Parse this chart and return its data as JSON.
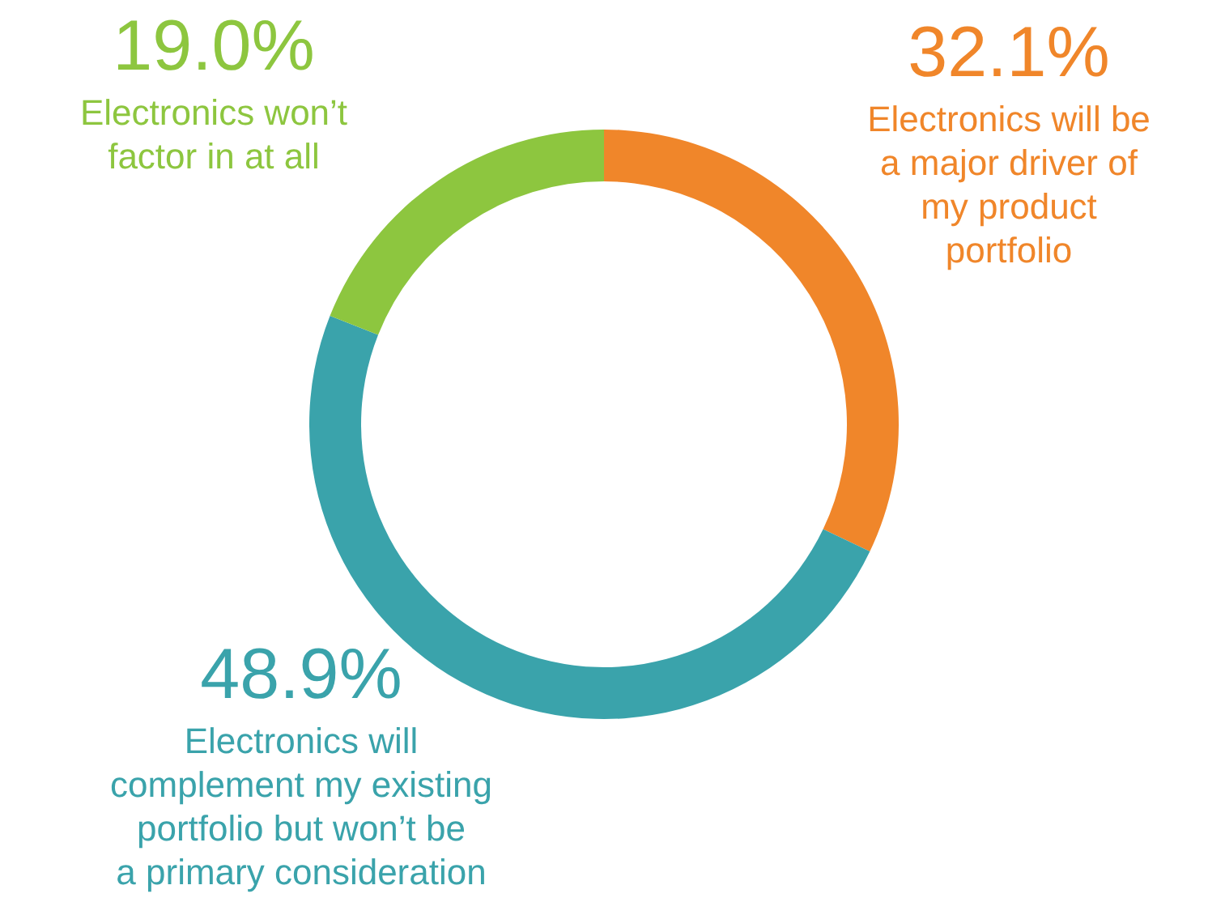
{
  "chart_data": {
    "type": "donut",
    "categories": [
      "Electronics will be a major driver of my product portfolio",
      "Electronics will complement my existing portfolio but won’t be a primary consideration",
      "Electronics won’t factor in at all"
    ],
    "values": [
      32.1,
      48.9,
      19.0
    ],
    "value_labels": [
      "32.1%",
      "48.9%",
      "19.0%"
    ],
    "colors": [
      "#f0862a",
      "#3aa3ab",
      "#8dc63f"
    ]
  }
}
